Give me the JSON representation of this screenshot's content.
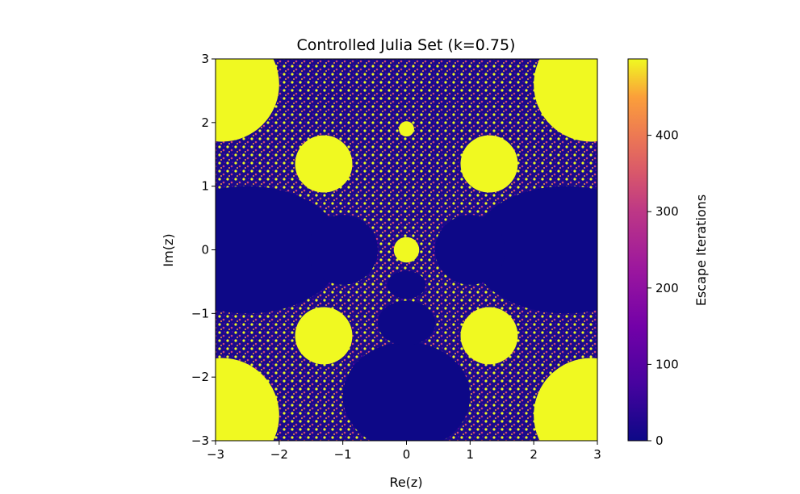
{
  "chart_data": {
    "type": "heatmap",
    "title": "Controlled Julia Set (k=0.75)",
    "xlabel": "Re(z)",
    "ylabel": "Im(z)",
    "xlim": [
      -3,
      3
    ],
    "ylim": [
      -3,
      3
    ],
    "x_ticks": [
      -3,
      -2,
      -1,
      0,
      1,
      2,
      3
    ],
    "y_ticks": [
      -3,
      -2,
      -1,
      0,
      1,
      2,
      3
    ],
    "x_tick_labels": [
      "−3",
      "−2",
      "−1",
      "0",
      "1",
      "2",
      "3"
    ],
    "y_tick_labels": [
      "−3",
      "−2",
      "−1",
      "0",
      "1",
      "2",
      "3"
    ],
    "colormap": "plasma",
    "colorbar": {
      "label": "Escape Iterations",
      "range": [
        0,
        500
      ],
      "ticks": [
        0,
        100,
        200,
        300,
        400
      ],
      "tick_labels": [
        "0",
        "100",
        "200",
        "300",
        "400"
      ]
    },
    "grid": false,
    "fractal_regions": {
      "note_free": true,
      "interior_blue": [
        {
          "cx": -2.5,
          "cy": 0,
          "rx": 1.5,
          "ry": 1.0
        },
        {
          "cx": 2.5,
          "cy": 0,
          "rx": 1.5,
          "ry": 1.0
        },
        {
          "cx": -1.0,
          "cy": 0,
          "rx": 0.55,
          "ry": 0.55
        },
        {
          "cx": 1.0,
          "cy": 0,
          "rx": 0.55,
          "ry": 0.55
        },
        {
          "cx": 0,
          "cy": -2.3,
          "rx": 1.0,
          "ry": 0.85
        },
        {
          "cx": 0,
          "cy": -1.15,
          "rx": 0.45,
          "ry": 0.35
        },
        {
          "cx": 0,
          "cy": -0.55,
          "rx": 0.3,
          "ry": 0.22
        }
      ],
      "escape_yellow": [
        {
          "cx": -2.9,
          "cy": 2.6,
          "r": 0.9
        },
        {
          "cx": 2.9,
          "cy": 2.6,
          "r": 0.9
        },
        {
          "cx": -2.9,
          "cy": -2.6,
          "r": 0.9
        },
        {
          "cx": 2.9,
          "cy": -2.6,
          "r": 0.9
        },
        {
          "cx": -1.3,
          "cy": 1.35,
          "r": 0.45
        },
        {
          "cx": 1.3,
          "cy": 1.35,
          "r": 0.45
        },
        {
          "cx": -1.3,
          "cy": -1.35,
          "r": 0.45
        },
        {
          "cx": 1.3,
          "cy": -1.35,
          "r": 0.45
        },
        {
          "cx": 0,
          "cy": 0,
          "r": 0.2
        },
        {
          "cx": 0,
          "cy": 1.9,
          "r": 0.12
        }
      ]
    }
  },
  "colors": {
    "plasma_low": "#0d0887",
    "plasma_mid1": "#7e03a8",
    "plasma_mid2": "#cc4778",
    "plasma_mid3": "#f89540",
    "plasma_high": "#f0f921"
  }
}
